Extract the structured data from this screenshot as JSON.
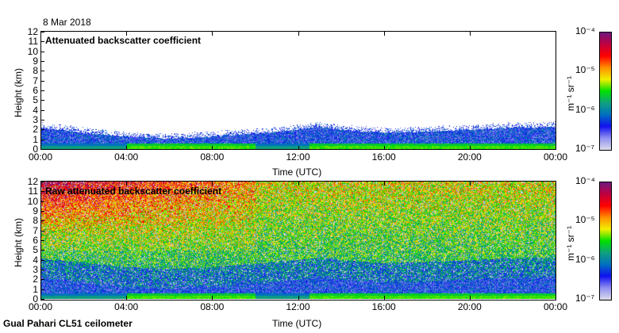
{
  "date": "8 Mar 2018",
  "footer": "Gual Pahari CL51 ceilometer",
  "colorbar": {
    "label": "m⁻¹ sr⁻¹",
    "ticks": [
      "10⁻⁴",
      "10⁻⁵",
      "10⁻⁶",
      "10⁻⁷"
    ],
    "colors": [
      "#dcdcec",
      "#9090f0",
      "#1010f0",
      "#0070c0",
      "#10a080",
      "#00e000",
      "#f0f000",
      "#ff9000",
      "#ff0000",
      "#c00040",
      "#701880"
    ]
  },
  "chart_data": [
    {
      "type": "heatmap",
      "title": "Attenuated backscatter coefficient",
      "xlabel": "Time (UTC)",
      "ylabel": "Height (km)",
      "xticks": [
        "00:00",
        "04:00",
        "08:00",
        "12:00",
        "16:00",
        "20:00",
        "00:00"
      ],
      "yticks": [
        "0",
        "1",
        "2",
        "3",
        "4",
        "5",
        "6",
        "7",
        "8",
        "9",
        "10",
        "11",
        "12"
      ],
      "ylim": [
        0,
        12
      ],
      "clim": [
        1e-07,
        0.0001
      ],
      "colorscale": "log",
      "layer_top_hours": [
        0,
        2,
        4,
        6,
        8,
        10,
        12,
        13,
        14,
        16,
        18,
        20,
        22,
        24
      ],
      "layer_top_km": [
        2.2,
        1.7,
        1.3,
        1.1,
        1.3,
        1.6,
        2.0,
        2.3,
        2.0,
        1.7,
        1.8,
        2.0,
        2.2,
        2.3
      ]
    },
    {
      "type": "heatmap",
      "title": "Raw attenuated backscatter coefficient",
      "xlabel": "Time (UTC)",
      "ylabel": "Height (km)",
      "xticks": [
        "00:00",
        "04:00",
        "08:00",
        "12:00",
        "16:00",
        "20:00",
        "00:00"
      ],
      "yticks": [
        "0",
        "1",
        "2",
        "3",
        "4",
        "5",
        "6",
        "7",
        "8",
        "9",
        "10",
        "11",
        "12"
      ],
      "ylim": [
        0,
        12
      ],
      "clim": [
        1e-07,
        0.0001
      ],
      "colorscale": "log"
    }
  ]
}
